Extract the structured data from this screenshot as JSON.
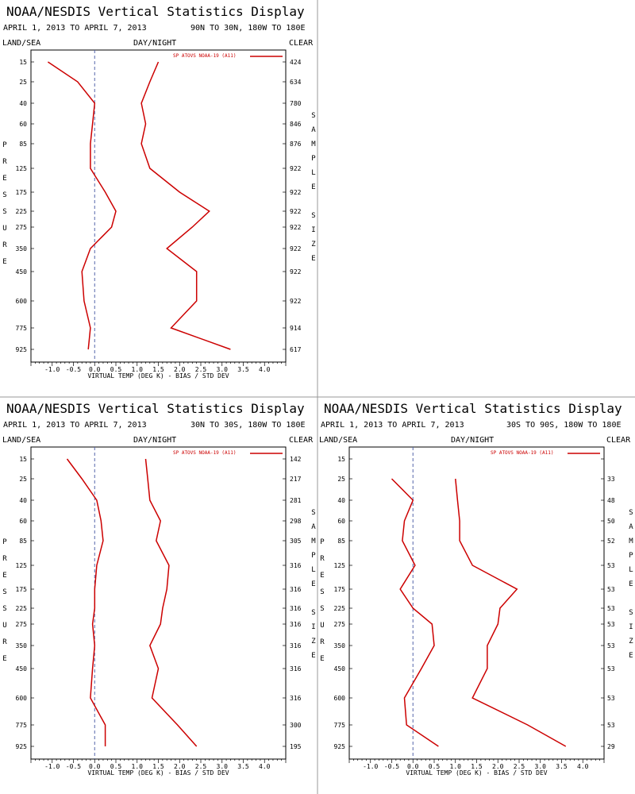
{
  "panels": [
    {
      "title": "NOAA/NESDIS Vertical Statistics Display",
      "dates": "APRIL 1, 2013 TO APRIL 7, 2013",
      "region": "90N TO 30N, 180W TO 180E",
      "left_label": "LAND/SEA",
      "mid_label": "DAY/NIGHT",
      "right_label": "CLEAR",
      "vertical_left": "PRESSURE",
      "vertical_right": "SAMPLE SIZE",
      "legend_label": "SP ATOVS NOAA-19 (A11)",
      "xlabel": "VIRTUAL TEMP (DEG K) - BIAS / STD DEV"
    },
    {
      "title": "NOAA/NESDIS Vertical Statistics Display",
      "dates": "APRIL 1, 2013 TO APRIL 7, 2013",
      "region": "30N TO 30S, 180W TO 180E",
      "left_label": "LAND/SEA",
      "mid_label": "DAY/NIGHT",
      "right_label": "CLEAR",
      "vertical_left": "PRESSURE",
      "vertical_right": "SAMPLE SIZE",
      "legend_label": "SP ATOVS NOAA-19 (A11)",
      "xlabel": "VIRTUAL TEMP (DEG K) - BIAS / STD DEV"
    },
    {
      "title": "NOAA/NESDIS Vertical Statistics Display",
      "dates": "APRIL 1, 2013 TO APRIL 7, 2013",
      "region": "30S TO 90S, 180W TO 180E",
      "left_label": "LAND/SEA",
      "mid_label": "DAY/NIGHT",
      "right_label": "CLEAR",
      "vertical_left": "PRESSURE",
      "vertical_right": "SAMPLE SIZE",
      "legend_label": "SP ATOVS NOAA-19 (A11)",
      "xlabel": "VIRTUAL TEMP (DEG K) - BIAS / STD DEV"
    }
  ],
  "colors": {
    "line": "#cc0000",
    "zero_line": "#5566aa",
    "divider": "#999999"
  },
  "chart_data": [
    {
      "type": "line",
      "region": "90N TO 30N, 180W TO 180E",
      "pressure_levels": [
        "15",
        "25",
        "40",
        "60",
        "85",
        "125",
        "175",
        "225",
        "275",
        "350",
        "450",
        "600",
        "775",
        "925"
      ],
      "xticks": [
        "-1.0",
        "-0.5",
        "0.0",
        "0.5",
        "1.0",
        "1.5",
        "2.0",
        "2.5",
        "3.0",
        "3.5",
        "4.0"
      ],
      "xlim": [
        -1.5,
        4.5
      ],
      "sample_size": [
        "424",
        "634",
        "780",
        "846",
        "876",
        "922",
        "922",
        "922",
        "922",
        "922",
        "922",
        "922",
        "914",
        "617"
      ],
      "series": [
        {
          "name": "bias",
          "values": [
            -1.1,
            -0.4,
            0.0,
            -0.05,
            -0.1,
            -0.1,
            0.25,
            0.5,
            0.4,
            -0.1,
            -0.3,
            -0.25,
            -0.1,
            -0.15
          ]
        },
        {
          "name": "std dev",
          "values": [
            1.5,
            1.3,
            1.1,
            1.2,
            1.1,
            1.3,
            2.0,
            2.7,
            2.3,
            1.7,
            2.4,
            2.4,
            1.8,
            3.2
          ]
        }
      ]
    },
    {
      "type": "line",
      "region": "30N TO 30S, 180W TO 180E",
      "pressure_levels": [
        "15",
        "25",
        "40",
        "60",
        "85",
        "125",
        "175",
        "225",
        "275",
        "350",
        "450",
        "600",
        "775",
        "925"
      ],
      "xticks": [
        "-1.0",
        "-0.5",
        "0.0",
        "0.5",
        "1.0",
        "1.5",
        "2.0",
        "2.5",
        "3.0",
        "3.5",
        "4.0"
      ],
      "xlim": [
        -1.5,
        4.5
      ],
      "sample_size": [
        "142",
        "217",
        "281",
        "298",
        "305",
        "316",
        "316",
        "316",
        "316",
        "316",
        "316",
        "316",
        "300",
        "195"
      ],
      "series": [
        {
          "name": "bias",
          "values": [
            -0.65,
            -0.3,
            0.05,
            0.15,
            0.2,
            0.05,
            0.0,
            0.0,
            -0.05,
            0.0,
            -0.05,
            -0.1,
            0.25,
            0.25
          ]
        },
        {
          "name": "std dev",
          "values": [
            1.2,
            1.25,
            1.3,
            1.55,
            1.45,
            1.75,
            1.7,
            1.6,
            1.55,
            1.3,
            1.5,
            1.35,
            1.95,
            2.4
          ]
        }
      ]
    },
    {
      "type": "line",
      "region": "30S TO 90S, 180W TO 180E",
      "pressure_levels": [
        "15",
        "25",
        "40",
        "60",
        "85",
        "125",
        "175",
        "225",
        "275",
        "350",
        "450",
        "600",
        "775",
        "925"
      ],
      "xticks": [
        "-1.0",
        "-0.5",
        "0.0",
        "0.5",
        "1.0",
        "1.5",
        "2.0",
        "2.5",
        "3.0",
        "3.5",
        "4.0"
      ],
      "xlim": [
        -1.5,
        4.5
      ],
      "sample_size": [
        "",
        "33",
        "48",
        "50",
        "52",
        "53",
        "53",
        "53",
        "53",
        "53",
        "53",
        "53",
        "53",
        "29"
      ],
      "series": [
        {
          "name": "bias",
          "values": [
            null,
            -0.5,
            0.0,
            -0.2,
            -0.25,
            0.05,
            -0.3,
            0.0,
            0.45,
            0.5,
            0.2,
            -0.2,
            -0.15,
            0.6
          ]
        },
        {
          "name": "std dev",
          "values": [
            null,
            1.0,
            1.05,
            1.1,
            1.1,
            1.4,
            2.45,
            2.05,
            2.0,
            1.75,
            1.75,
            1.4,
            2.7,
            3.6
          ]
        }
      ]
    }
  ]
}
